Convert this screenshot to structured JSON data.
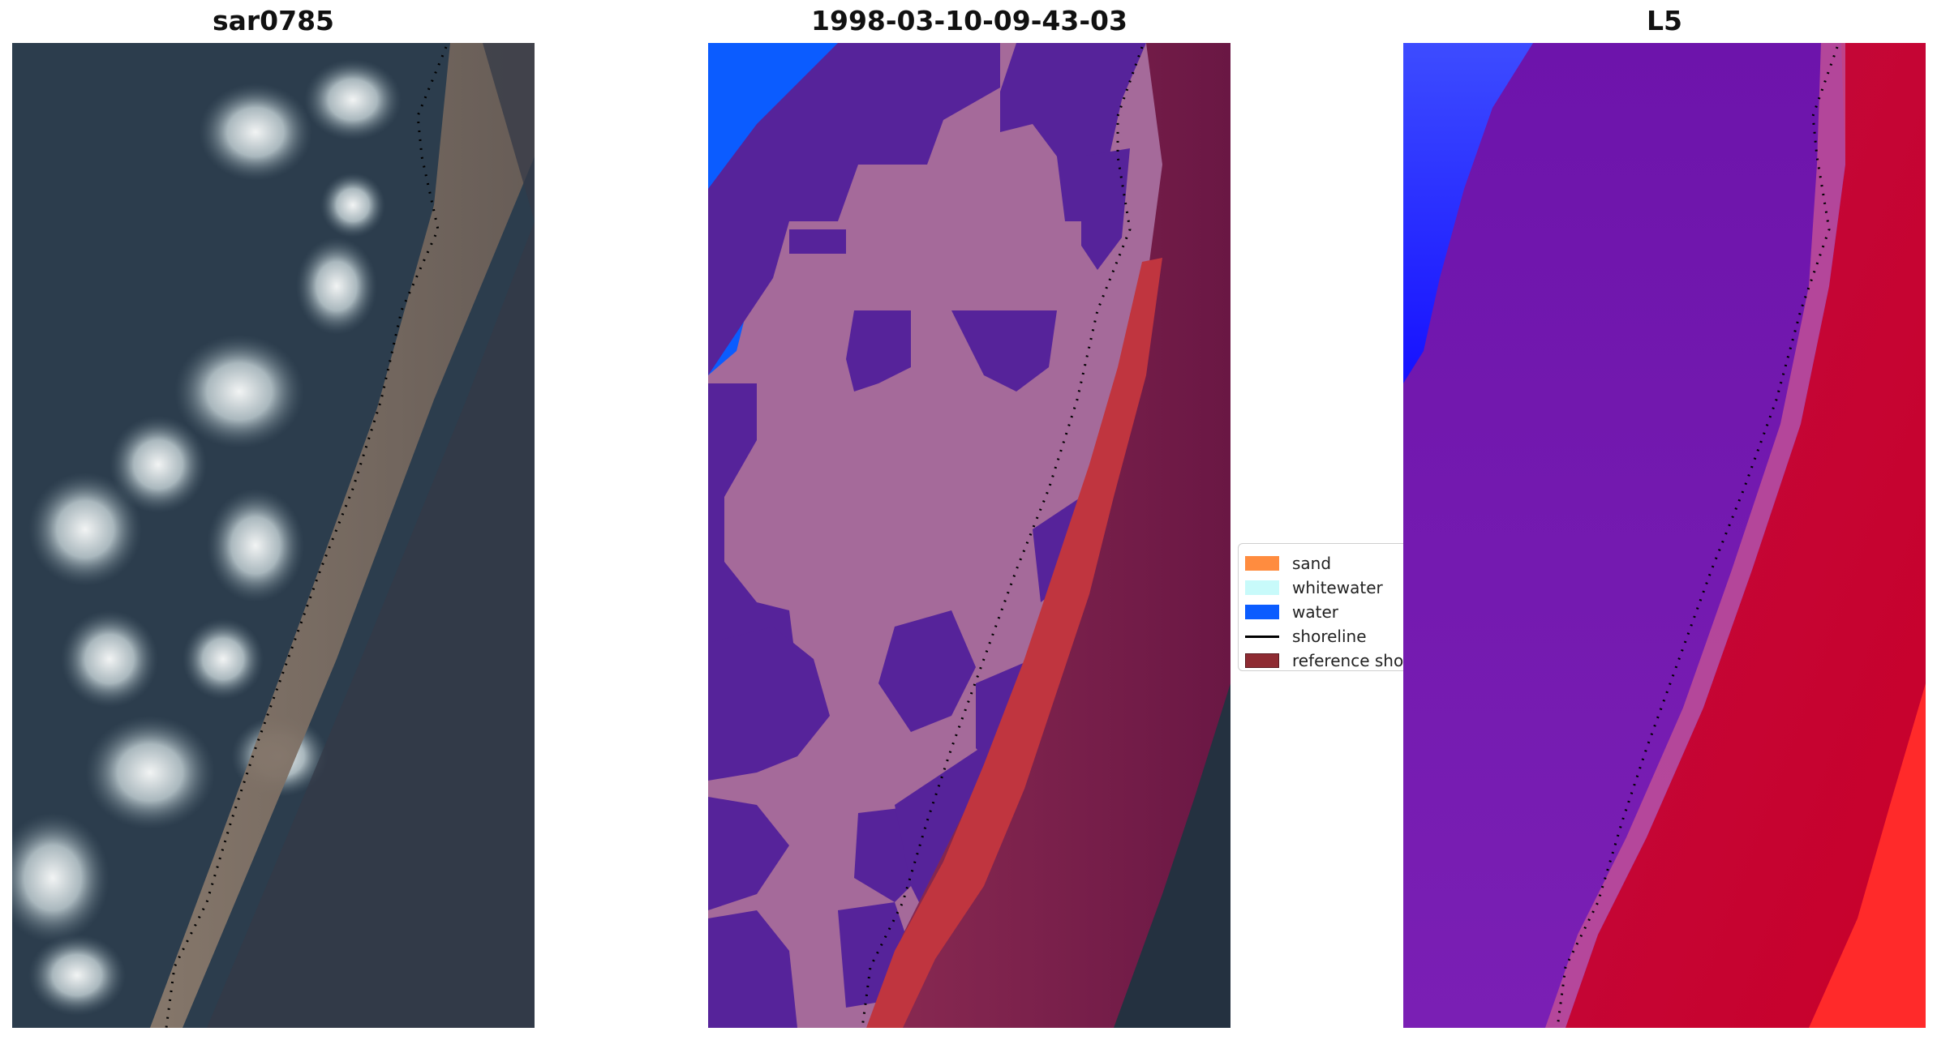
{
  "panels": [
    {
      "title": "sar0785"
    },
    {
      "title": "1998-03-10-09-43-03"
    },
    {
      "title": "L5"
    }
  ],
  "legend": {
    "items": [
      {
        "label": "sand",
        "color": "#ff8c3f"
      },
      {
        "label": "whitewater",
        "color": "#c8fafa"
      },
      {
        "label": "water",
        "color": "#0b5cff"
      },
      {
        "label": "shoreline",
        "color": "#000000"
      },
      {
        "label": "reference shoreline",
        "color": "#8e2b32"
      }
    ]
  },
  "colors": {
    "class_water": "#0b5cff",
    "class_other": "#a56a9a",
    "class_dark": "#56239a",
    "class_reference": "#c0353f",
    "land_dark": "#7a1c4a",
    "ocean_dark": "#233140",
    "rgb_sea": "#3b4d5c",
    "rgb_sand": "#7f6f63",
    "rgb_land": "#2c3240",
    "index_purple": "#6b12a8",
    "index_red": "#c5002e",
    "index_blue": "#1a22ff"
  }
}
